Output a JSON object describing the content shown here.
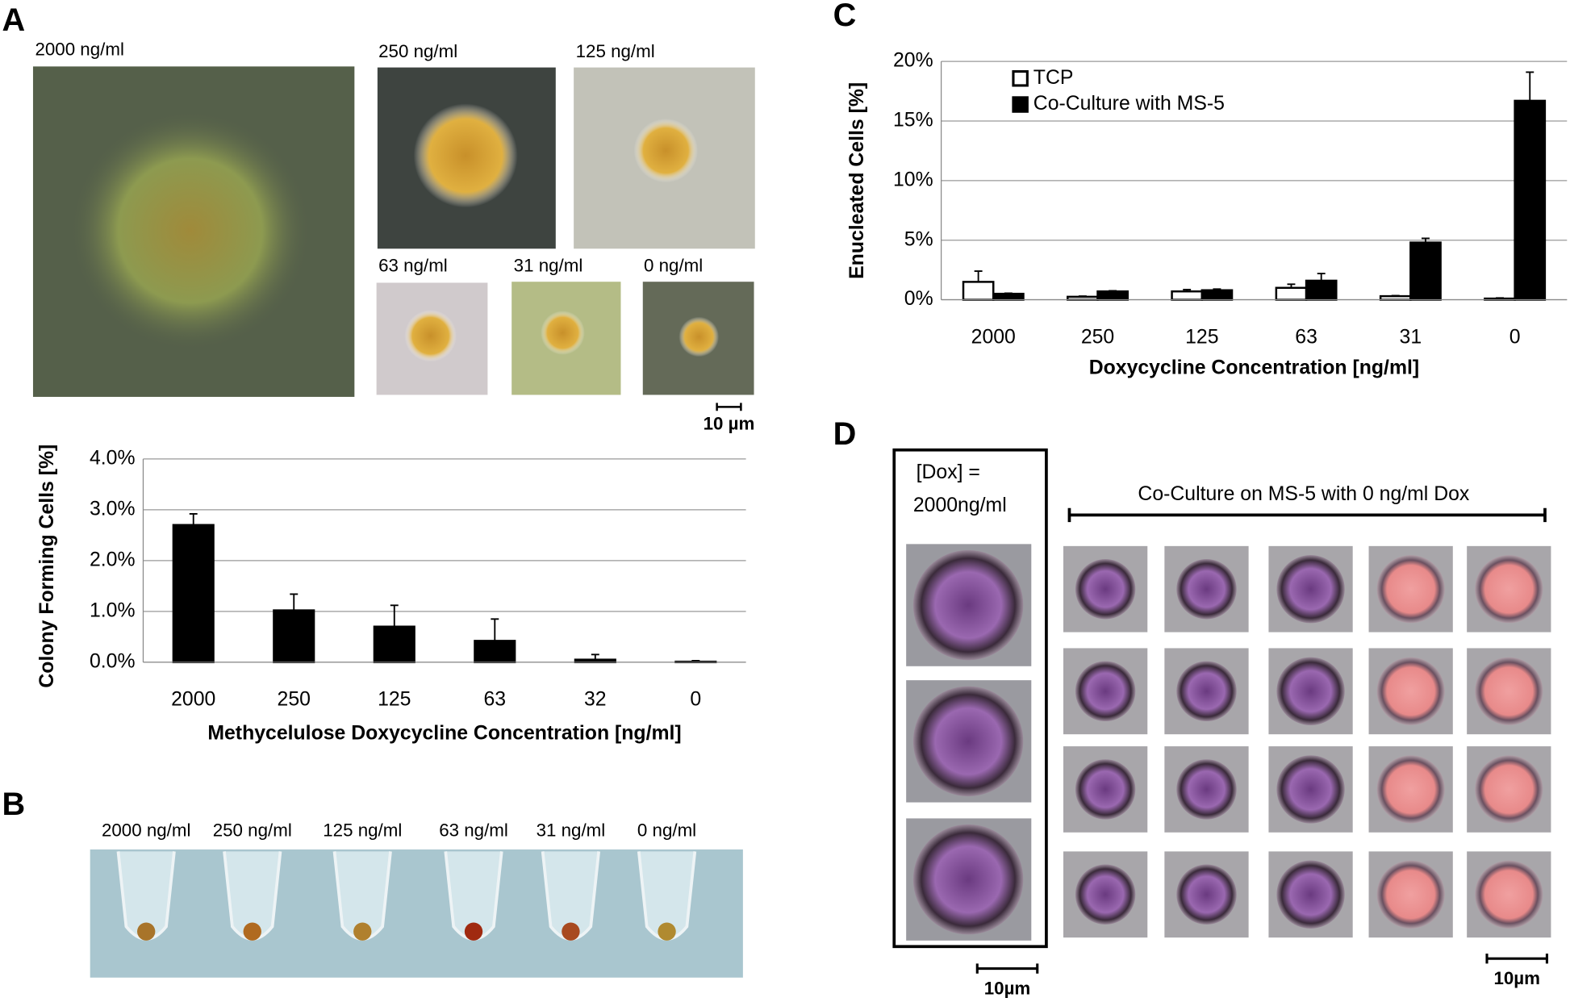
{
  "figure": {
    "panels": [
      "A",
      "B",
      "C",
      "D"
    ],
    "a_images": [
      "2000 ng/ml",
      "250 ng/ml",
      "125 ng/ml",
      "63 ng/ml",
      "31 ng/ml",
      "0 ng/ml"
    ],
    "a_scale": "10 µm",
    "b_labels": [
      "2000 ng/ml",
      "250 ng/ml",
      "125 ng/ml",
      "63 ng/ml",
      "31 ng/ml",
      "0 ng/ml"
    ],
    "d_dox": [
      "[Dox] =",
      "2000ng/ml"
    ],
    "d_caption": "Co-Culture on MS-5 with 0 ng/ml Dox",
    "d_scales": [
      "10µm",
      "10µm"
    ]
  },
  "chart_data": [
    {
      "type": "bar",
      "xlabel": "Methycelulose Doxycycline Concentration [ng/ml]",
      "ylabel": "Colony Forming Cells [%]",
      "categories": [
        "2000",
        "250",
        "125",
        "63",
        "32",
        "0"
      ],
      "series": [
        {
          "color": "#000000",
          "values": [
            2.7,
            1.02,
            0.7,
            0.42,
            0.05,
            0.01
          ],
          "errors": [
            0.22,
            0.32,
            0.42,
            0.43,
            0.1,
            0.02
          ]
        }
      ],
      "ylim": [
        0,
        4
      ],
      "yticks": [
        {
          "value": 0,
          "label": "0.0%"
        },
        {
          "value": 1,
          "label": "1.0%"
        },
        {
          "value": 2,
          "label": "2.0%"
        },
        {
          "value": 3,
          "label": "3.0%"
        },
        {
          "value": 4,
          "label": "4.0%"
        }
      ],
      "grid": true
    },
    {
      "type": "bar",
      "xlabel": "Doxycycline Concentration [ng/ml]",
      "ylabel": "Enucleated  Cells [%]",
      "categories": [
        "2000",
        "250",
        "125",
        "63",
        "31",
        "0"
      ],
      "series": [
        {
          "name": "TCP",
          "color": "#ffffff",
          "values": [
            1.5,
            0.25,
            0.7,
            1.0,
            0.3,
            0.1
          ],
          "errors": [
            0.9,
            0.05,
            0.15,
            0.3,
            0.05,
            0.05
          ]
        },
        {
          "name": "Co-Culture with MS-5",
          "color": "#000000",
          "values": [
            0.5,
            0.7,
            0.8,
            1.6,
            4.8,
            16.7
          ],
          "errors": [
            0.05,
            0.05,
            0.1,
            0.6,
            0.35,
            2.4
          ]
        }
      ],
      "ylim": [
        0,
        20
      ],
      "yticks": [
        {
          "value": 0,
          "label": "0%"
        },
        {
          "value": 5,
          "label": "5%"
        },
        {
          "value": 10,
          "label": "10%"
        },
        {
          "value": 15,
          "label": "15%"
        },
        {
          "value": 20,
          "label": "20%"
        }
      ],
      "grid": true,
      "legend": "upper left"
    }
  ]
}
